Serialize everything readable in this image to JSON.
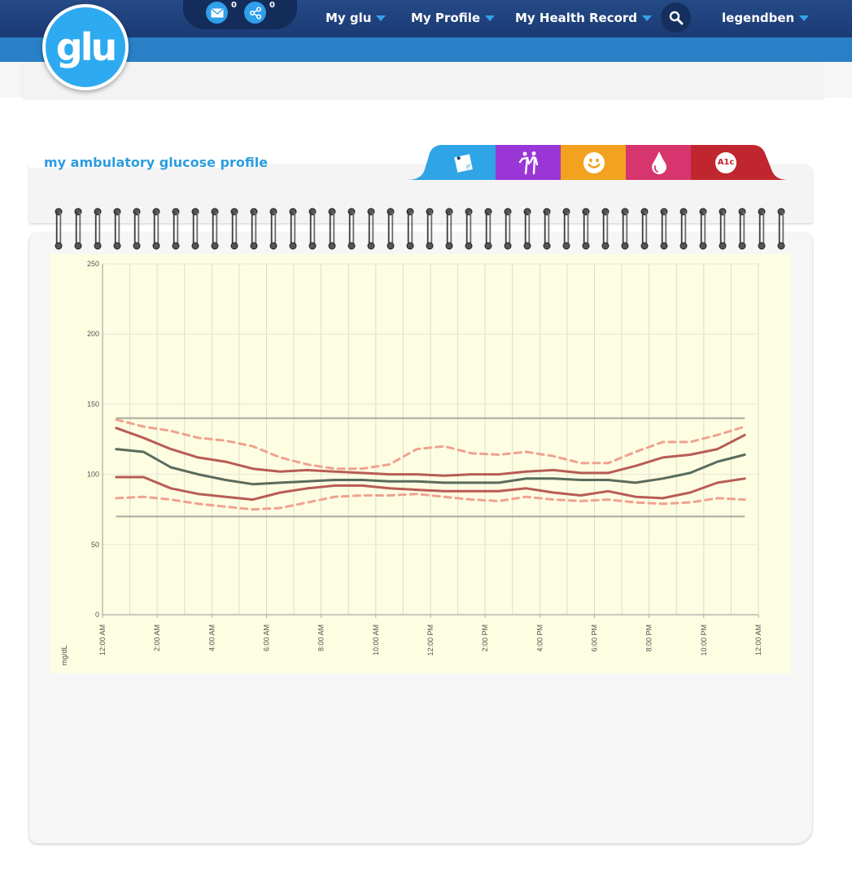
{
  "header": {
    "logo_text": "glu",
    "messages_count": "0",
    "shares_count": "0",
    "nav": [
      {
        "label": "My glu"
      },
      {
        "label": "My Profile"
      },
      {
        "label": "My Health Record"
      }
    ],
    "username": "legendben",
    "accent_color": "#2eaaf0",
    "icons": [
      "envelope-icon",
      "share-icon",
      "search-icon",
      "chevron-down-icon"
    ]
  },
  "panel": {
    "title": "my ambulatory glucose profile",
    "tabs": [
      {
        "name": "notes",
        "icon": "note-icon",
        "color": "#2fa4e6"
      },
      {
        "name": "activity",
        "icon": "activity-icon",
        "color": "#9a36d6"
      },
      {
        "name": "mood",
        "icon": "smiley-icon",
        "color": "#f2a21e"
      },
      {
        "name": "glucose",
        "icon": "drop-icon",
        "color": "#d6356e"
      },
      {
        "name": "a1c",
        "icon": "a1c-icon",
        "label": "A1c",
        "color": "#c0262f"
      }
    ]
  },
  "chart_data": {
    "type": "line",
    "ylabel": "mg/dL",
    "ylim": [
      0,
      250
    ],
    "yticks": [
      0,
      50,
      100,
      150,
      200,
      250
    ],
    "x_tick_labels": [
      "12:00 AM",
      "2:00 AM",
      "4:00 AM",
      "6:00 AM",
      "8:00 AM",
      "10:00 AM",
      "12:00 PM",
      "2:00 PM",
      "4:00 PM",
      "6:00 PM",
      "8:00 PM",
      "10:00 PM",
      "12:00 AM"
    ],
    "x_hours": [
      0.5,
      1.5,
      2.5,
      3.5,
      4.5,
      5.5,
      6.5,
      7.5,
      8.5,
      9.5,
      10.5,
      11.5,
      12.5,
      13.5,
      14.5,
      15.5,
      16.5,
      17.5,
      18.5,
      19.5,
      20.5,
      21.5,
      22.5,
      23.5
    ],
    "reference_lines": [
      70,
      140
    ],
    "grid": true,
    "series": [
      {
        "style": "dashed",
        "color": "#f0a28e",
        "values": [
          139,
          134,
          131,
          126,
          124,
          120,
          112,
          107,
          104,
          104,
          107,
          118,
          120,
          115,
          114,
          116,
          113,
          108,
          108,
          116,
          123,
          123,
          128,
          134
        ]
      },
      {
        "style": "solid",
        "color": "#b85c55",
        "values": [
          133,
          126,
          118,
          112,
          109,
          104,
          102,
          103,
          102,
          101,
          100,
          100,
          99,
          100,
          100,
          102,
          103,
          101,
          101,
          106,
          112,
          114,
          118,
          128
        ]
      },
      {
        "style": "solid",
        "color": "#5a6b5c",
        "values": [
          118,
          116,
          105,
          100,
          96,
          93,
          94,
          95,
          96,
          96,
          95,
          95,
          94,
          94,
          94,
          97,
          97,
          96,
          96,
          94,
          97,
          101,
          109,
          114
        ]
      },
      {
        "style": "solid",
        "color": "#b85c55",
        "values": [
          98,
          98,
          90,
          86,
          84,
          82,
          87,
          90,
          92,
          92,
          90,
          89,
          88,
          88,
          88,
          90,
          87,
          85,
          88,
          84,
          83,
          87,
          94,
          97
        ]
      },
      {
        "style": "dashed",
        "color": "#f0a28e",
        "values": [
          83,
          84,
          82,
          79,
          77,
          75,
          76,
          80,
          84,
          85,
          85,
          86,
          84,
          82,
          81,
          84,
          82,
          81,
          82,
          80,
          79,
          80,
          83,
          82
        ]
      }
    ]
  }
}
